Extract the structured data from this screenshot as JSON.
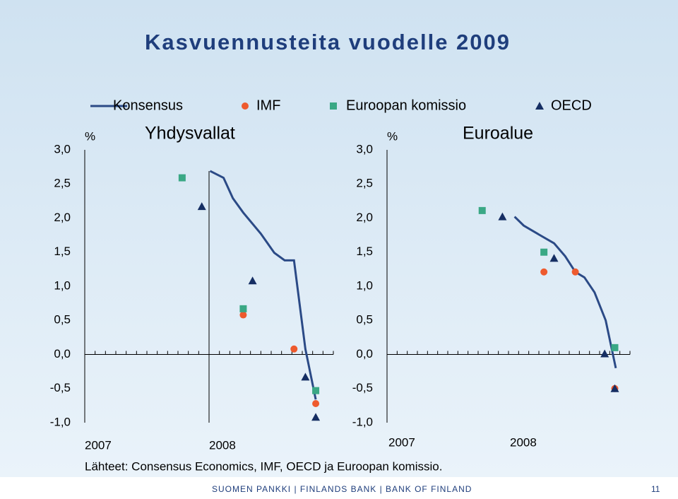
{
  "title": "Kasvuennusteita vuodelle 2009",
  "chart_data": [
    {
      "type": "line",
      "title": "Yhdysvallat",
      "ylabel": "%",
      "xlim": [
        0,
        24
      ],
      "xticks": [
        {
          "value": 0,
          "label": "2007"
        },
        {
          "value": 12,
          "label": "2008"
        }
      ],
      "ylim": [
        -1,
        3
      ],
      "yticks": [
        {
          "value": -1,
          "label": "-1,0"
        },
        {
          "value": -0.5,
          "label": "-0,5"
        },
        {
          "value": 0,
          "label": "0,0"
        },
        {
          "value": 0.5,
          "label": "0,5"
        },
        {
          "value": 1,
          "label": "1,0"
        },
        {
          "value": 1.5,
          "label": "1,5"
        },
        {
          "value": 2,
          "label": "2,0"
        },
        {
          "value": 2.5,
          "label": "2,5"
        },
        {
          "value": 3,
          "label": "3,0"
        }
      ],
      "series": [
        {
          "name": "Konsensus",
          "color": "#2b4a86",
          "marker": "line",
          "x": [
            12.1,
            13.4,
            14.3,
            15.3,
            17,
            18.3,
            19.3,
            20.2,
            21.3,
            22.3
          ],
          "values": [
            2.69,
            2.59,
            2.29,
            2.08,
            1.77,
            1.49,
            1.38,
            1.38,
            0.08,
            -0.66
          ]
        },
        {
          "name": "IMF",
          "color": "#ee5a2e",
          "marker": "circle",
          "x": [
            15.3,
            20.2,
            22.3
          ],
          "values": [
            0.58,
            0.08,
            -0.72
          ]
        },
        {
          "name": "Euroopan komissio",
          "color": "#3aa885",
          "marker": "square",
          "x": [
            9.4,
            15.3,
            22.3
          ],
          "values": [
            2.59,
            0.67,
            -0.53
          ]
        },
        {
          "name": "OECD",
          "color": "#152e63",
          "marker": "triangle",
          "x": [
            11.3,
            16.2,
            21.3,
            22.3
          ],
          "values": [
            2.17,
            1.08,
            -0.33,
            -0.92
          ]
        }
      ]
    },
    {
      "type": "line",
      "title": "Euroalue",
      "ylabel": "%",
      "xlim": [
        0,
        24
      ],
      "xticks": [
        {
          "value": 0,
          "label": "2007"
        },
        {
          "value": 12,
          "label": "2008"
        }
      ],
      "ylim": [
        -1,
        3
      ],
      "yticks": [
        {
          "value": -1,
          "label": "-1,0"
        },
        {
          "value": -0.5,
          "label": "-0,5"
        },
        {
          "value": 0,
          "label": "0,0"
        },
        {
          "value": 0.5,
          "label": "0,5"
        },
        {
          "value": 1,
          "label": "1,0"
        },
        {
          "value": 1.5,
          "label": "1,5"
        },
        {
          "value": 2,
          "label": "2,0"
        },
        {
          "value": 2.5,
          "label": "2,5"
        },
        {
          "value": 3,
          "label": "3,0"
        }
      ],
      "series": [
        {
          "color": "#2b4a86",
          "marker": "line",
          "x": [
            12.6,
            13.5,
            15.1,
            16.5,
            17.6,
            18.6,
            19.5,
            20.5,
            21.6,
            22.6
          ],
          "values": [
            2.02,
            1.89,
            1.75,
            1.63,
            1.44,
            1.21,
            1.13,
            0.91,
            0.5,
            -0.2
          ]
        },
        {
          "color": "#ee5a2e",
          "marker": "circle",
          "x": [
            15.5,
            18.6,
            22.5
          ],
          "values": [
            1.21,
            1.21,
            -0.5
          ]
        },
        {
          "color": "#3aa885",
          "marker": "square",
          "x": [
            9.4,
            15.5,
            22.5
          ],
          "values": [
            2.11,
            1.5,
            0.1
          ]
        },
        {
          "color": "#152e63",
          "marker": "triangle",
          "x": [
            11.4,
            16.5,
            21.5,
            22.5
          ],
          "values": [
            2.02,
            1.41,
            0.01,
            -0.5
          ]
        }
      ]
    }
  ],
  "source": "Lähteet: Consensus Economics, IMF, OECD ja Euroopan komissio.",
  "footer": "SUOMEN PANKKI | FINLANDS BANK | BANK OF FINLAND",
  "page": "11"
}
